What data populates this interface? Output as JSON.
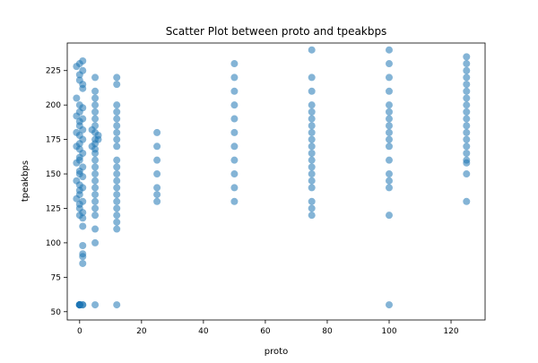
{
  "chart_data": {
    "type": "scatter",
    "title": "Scatter Plot between proto and tpeakbps",
    "xlabel": "proto",
    "ylabel": "tpeakbps",
    "xlim": [
      -4,
      131
    ],
    "ylim": [
      44,
      245
    ],
    "xticks": [
      0,
      20,
      40,
      60,
      80,
      100,
      120
    ],
    "yticks": [
      50,
      75,
      100,
      125,
      150,
      175,
      200,
      225
    ],
    "grid": false,
    "legend": "none",
    "marker_color": "#1f77b4",
    "marker_alpha": 0.55,
    "series": [
      {
        "points": [
          [
            0,
            55
          ],
          [
            0,
            55
          ],
          [
            0,
            55
          ],
          [
            0,
            55
          ],
          [
            0,
            55
          ],
          [
            0,
            55
          ],
          [
            0,
            55
          ],
          [
            0,
            55
          ],
          [
            1,
            55
          ],
          [
            1,
            55
          ],
          [
            0,
            230
          ],
          [
            1,
            232
          ],
          [
            0,
            222
          ],
          [
            1,
            215
          ],
          [
            -1,
            205
          ],
          [
            0,
            200
          ],
          [
            1,
            198
          ],
          [
            0,
            195
          ],
          [
            -1,
            192
          ],
          [
            1,
            190
          ],
          [
            0,
            188
          ],
          [
            0,
            185
          ],
          [
            1,
            182
          ],
          [
            -1,
            180
          ],
          [
            0,
            178
          ],
          [
            1,
            175
          ],
          [
            0,
            172
          ],
          [
            -1,
            170
          ],
          [
            0,
            168
          ],
          [
            1,
            165
          ],
          [
            0,
            162
          ],
          [
            0,
            160
          ],
          [
            -1,
            158
          ],
          [
            1,
            155
          ],
          [
            0,
            152
          ],
          [
            0,
            150
          ],
          [
            1,
            148
          ],
          [
            -1,
            145
          ],
          [
            0,
            142
          ],
          [
            1,
            140
          ],
          [
            0,
            138
          ],
          [
            0,
            135
          ],
          [
            -1,
            132
          ],
          [
            1,
            130
          ],
          [
            0,
            128
          ],
          [
            0,
            125
          ],
          [
            1,
            122
          ],
          [
            0,
            120
          ],
          [
            1,
            118
          ],
          [
            1,
            112
          ],
          [
            1,
            98
          ],
          [
            1,
            92
          ],
          [
            1,
            90
          ],
          [
            1,
            85
          ],
          [
            -1,
            228
          ],
          [
            1,
            225
          ],
          [
            0,
            218
          ],
          [
            1,
            212
          ],
          [
            5,
            220
          ],
          [
            5,
            210
          ],
          [
            5,
            205
          ],
          [
            5,
            200
          ],
          [
            5,
            195
          ],
          [
            5,
            190
          ],
          [
            5,
            185
          ],
          [
            5,
            180
          ],
          [
            5,
            175
          ],
          [
            5,
            172
          ],
          [
            5,
            168
          ],
          [
            5,
            165
          ],
          [
            5,
            160
          ],
          [
            5,
            155
          ],
          [
            5,
            150
          ],
          [
            5,
            145
          ],
          [
            5,
            140
          ],
          [
            5,
            135
          ],
          [
            5,
            130
          ],
          [
            5,
            125
          ],
          [
            5,
            120
          ],
          [
            5,
            110
          ],
          [
            5,
            100
          ],
          [
            5,
            55
          ],
          [
            6,
            178
          ],
          [
            6,
            175
          ],
          [
            4,
            182
          ],
          [
            4,
            170
          ],
          [
            12,
            220
          ],
          [
            12,
            215
          ],
          [
            12,
            200
          ],
          [
            12,
            195
          ],
          [
            12,
            190
          ],
          [
            12,
            185
          ],
          [
            12,
            180
          ],
          [
            12,
            175
          ],
          [
            12,
            170
          ],
          [
            12,
            160
          ],
          [
            12,
            155
          ],
          [
            12,
            150
          ],
          [
            12,
            145
          ],
          [
            12,
            140
          ],
          [
            12,
            135
          ],
          [
            12,
            130
          ],
          [
            12,
            125
          ],
          [
            12,
            120
          ],
          [
            12,
            115
          ],
          [
            12,
            110
          ],
          [
            12,
            55
          ],
          [
            25,
            180
          ],
          [
            25,
            170
          ],
          [
            25,
            160
          ],
          [
            25,
            150
          ],
          [
            25,
            140
          ],
          [
            25,
            135
          ],
          [
            25,
            130
          ],
          [
            50,
            230
          ],
          [
            50,
            220
          ],
          [
            50,
            210
          ],
          [
            50,
            200
          ],
          [
            50,
            190
          ],
          [
            50,
            180
          ],
          [
            50,
            170
          ],
          [
            50,
            160
          ],
          [
            50,
            150
          ],
          [
            50,
            140
          ],
          [
            50,
            130
          ],
          [
            75,
            240
          ],
          [
            75,
            220
          ],
          [
            75,
            210
          ],
          [
            75,
            200
          ],
          [
            75,
            195
          ],
          [
            75,
            190
          ],
          [
            75,
            185
          ],
          [
            75,
            180
          ],
          [
            75,
            175
          ],
          [
            75,
            170
          ],
          [
            75,
            165
          ],
          [
            75,
            160
          ],
          [
            75,
            155
          ],
          [
            75,
            150
          ],
          [
            75,
            145
          ],
          [
            75,
            140
          ],
          [
            75,
            130
          ],
          [
            75,
            125
          ],
          [
            75,
            120
          ],
          [
            100,
            240
          ],
          [
            100,
            230
          ],
          [
            100,
            220
          ],
          [
            100,
            210
          ],
          [
            100,
            200
          ],
          [
            100,
            195
          ],
          [
            100,
            190
          ],
          [
            100,
            185
          ],
          [
            100,
            180
          ],
          [
            100,
            175
          ],
          [
            100,
            170
          ],
          [
            100,
            160
          ],
          [
            100,
            150
          ],
          [
            100,
            145
          ],
          [
            100,
            140
          ],
          [
            100,
            120
          ],
          [
            100,
            55
          ],
          [
            125,
            235
          ],
          [
            125,
            230
          ],
          [
            125,
            225
          ],
          [
            125,
            220
          ],
          [
            125,
            215
          ],
          [
            125,
            210
          ],
          [
            125,
            205
          ],
          [
            125,
            200
          ],
          [
            125,
            195
          ],
          [
            125,
            190
          ],
          [
            125,
            185
          ],
          [
            125,
            180
          ],
          [
            125,
            175
          ],
          [
            125,
            170
          ],
          [
            125,
            165
          ],
          [
            125,
            160
          ],
          [
            125,
            158
          ],
          [
            125,
            150
          ],
          [
            125,
            130
          ]
        ]
      }
    ]
  }
}
